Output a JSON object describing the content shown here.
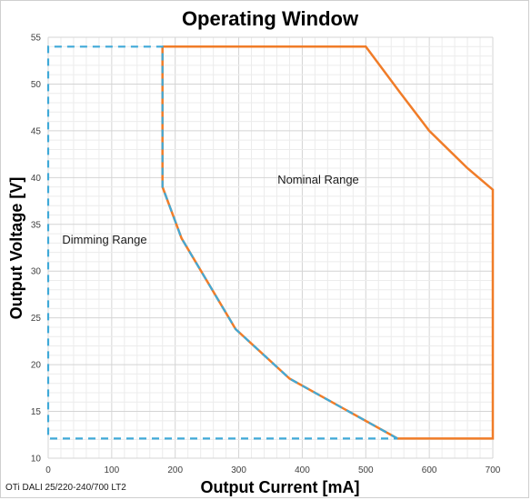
{
  "chart_data": {
    "type": "line",
    "title": "Operating Window",
    "xlabel": "Output Current [mA]",
    "ylabel": "Output Voltage [V]",
    "xlim": [
      0,
      700
    ],
    "ylim": [
      10,
      55
    ],
    "xticks": [
      "0",
      "100",
      "200",
      "300",
      "400",
      "500",
      "600",
      "700"
    ],
    "yticks": [
      "10",
      "15",
      "20",
      "25",
      "30",
      "35",
      "40",
      "45",
      "50",
      "55"
    ],
    "grid": true,
    "annotations": [
      "Nominal Range",
      "Dimming Range"
    ],
    "footnote": "OTi DALI 25/220-240/700 LT2",
    "colors": {
      "nominal": "#f07c28",
      "dimming": "#3fa9d8"
    },
    "series": [
      {
        "region": "nominal",
        "x": [
          180,
          180,
          210,
          295,
          380,
          550,
          700,
          700,
          660,
          600,
          555,
          500,
          180
        ],
        "y": [
          54,
          39,
          33.5,
          23.8,
          18.5,
          12.1,
          12.1,
          38.7,
          41,
          45,
          49,
          54,
          54
        ]
      },
      {
        "region": "dimming",
        "x": [
          550,
          380,
          295,
          210,
          180,
          180,
          0,
          0,
          550
        ],
        "y": [
          12.1,
          18.5,
          23.8,
          33.5,
          39,
          54,
          54,
          12.1,
          12.1
        ]
      }
    ]
  }
}
